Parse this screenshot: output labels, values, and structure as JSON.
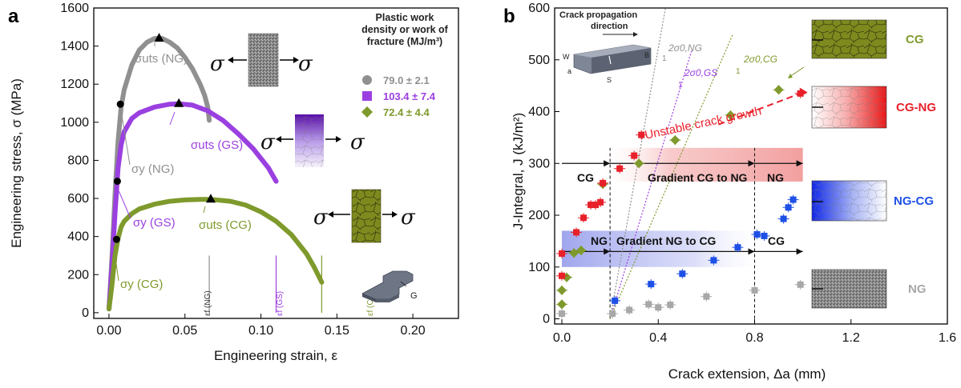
{
  "colors": {
    "ng": "#909090",
    "gs": "#9a3fe0",
    "cg": "#7f9a2c",
    "red": "#e8202a",
    "blue": "#1e50e6",
    "gray_pts": "#a8a8a8"
  },
  "panel_a": {
    "letter": "a",
    "legend": {
      "title_lines": [
        "Plastic work",
        "density or work of",
        "fracture (MJ/m³)"
      ],
      "entries": [
        {
          "marker": "circle",
          "value": "79.0 ± 2.1",
          "color_key": "ng"
        },
        {
          "marker": "square",
          "value": "103.4 ± 7.4",
          "color_key": "gs"
        },
        {
          "marker": "diamond",
          "value": "72.4 ± 4.4",
          "color_key": "cg"
        }
      ]
    },
    "annotations": {
      "uts_ng": "σuts (NG)",
      "uts_gs": "σuts (GS)",
      "uts_cg": "σuts (CG)",
      "y_ng": "σy (NG)",
      "y_gs": "σy (GS)",
      "y_cg": "σy (CG)",
      "ef_ng": "εf (NG)",
      "ef_gs": "εf (GS)",
      "ef_cg": "εf (CG)",
      "sigma": "σ",
      "specimen_g": "G"
    }
  },
  "panel_b": {
    "letter": "b",
    "crack_label_lines": [
      "Crack propagation",
      "direction"
    ],
    "slope_labels": {
      "ng": "2σ0,NG",
      "gs": "2σ0,GS",
      "cg": "2σ0,CG",
      "one": "1"
    },
    "specimen_labels": {
      "w": "W",
      "a": "a",
      "s": "S",
      "b": "B"
    },
    "unstable": "Unstable crack growth",
    "region_upper": {
      "left": "CG",
      "mid": "Gradient CG to NG",
      "right": "NG"
    },
    "region_lower": {
      "left": "NG",
      "mid": "Gradient NG to CG",
      "right": "CG"
    },
    "samples": [
      {
        "label": "CG",
        "color_key": "cg"
      },
      {
        "label": "CG-NG",
        "color_key": "red"
      },
      {
        "label": "NG-CG",
        "color_key": "blue"
      },
      {
        "label": "NG",
        "color_key": "gray_pts"
      }
    ]
  },
  "chart_data": [
    {
      "type": "line",
      "xlabel": "Engineering strain, ε",
      "ylabel": "Engineering stress, σ (MPa)",
      "xlim": [
        -0.01,
        0.23
      ],
      "ylim": [
        -30,
        1600
      ],
      "xticks": [
        "0.00",
        "0.05",
        "0.10",
        "0.15",
        "0.20"
      ],
      "xtick_values": [
        0,
        0.05,
        0.1,
        0.15,
        0.2
      ],
      "yticks": [
        "0",
        "200",
        "400",
        "600",
        "800",
        "1000",
        "1200",
        "1400",
        "1600"
      ],
      "ytick_values": [
        0,
        200,
        400,
        600,
        800,
        1000,
        1200,
        1400,
        1600
      ],
      "series": [
        {
          "name": "NG",
          "color_key": "ng",
          "x": [
            0.0,
            0.002,
            0.004,
            0.006,
            0.008,
            0.01,
            0.015,
            0.02,
            0.025,
            0.03,
            0.035,
            0.04,
            0.045,
            0.05,
            0.055,
            0.06,
            0.063,
            0.065,
            0.066
          ],
          "y": [
            20,
            300,
            620,
            900,
            1080,
            1170,
            1300,
            1380,
            1420,
            1440,
            1440,
            1420,
            1390,
            1340,
            1280,
            1200,
            1140,
            1080,
            1010
          ],
          "uts": [
            0.033,
            1440
          ],
          "yield": [
            0.0075,
            1095
          ]
        },
        {
          "name": "GS",
          "color_key": "gs",
          "x": [
            0.0,
            0.002,
            0.004,
            0.006,
            0.008,
            0.01,
            0.015,
            0.02,
            0.03,
            0.04,
            0.046,
            0.055,
            0.065,
            0.075,
            0.085,
            0.095,
            0.105,
            0.11
          ],
          "y": [
            20,
            250,
            520,
            760,
            880,
            950,
            1020,
            1050,
            1080,
            1095,
            1097,
            1090,
            1060,
            1010,
            940,
            860,
            760,
            690
          ],
          "uts": [
            0.046,
            1097
          ],
          "yield": [
            0.0055,
            690
          ]
        },
        {
          "name": "CG",
          "color_key": "cg",
          "x": [
            0.0,
            0.002,
            0.004,
            0.006,
            0.008,
            0.01,
            0.015,
            0.02,
            0.03,
            0.04,
            0.05,
            0.06,
            0.067,
            0.08,
            0.09,
            0.1,
            0.11,
            0.12,
            0.13,
            0.135,
            0.14
          ],
          "y": [
            20,
            150,
            300,
            390,
            450,
            480,
            520,
            545,
            570,
            585,
            592,
            595,
            595,
            585,
            565,
            530,
            480,
            410,
            310,
            240,
            160
          ],
          "uts": [
            0.067,
            595
          ],
          "yield": [
            0.005,
            385
          ]
        }
      ],
      "fracture_strains": {
        "ng": 0.066,
        "gs": 0.11,
        "cg": 0.14
      }
    },
    {
      "type": "scatter",
      "xlabel": "Crack extension, Δa (mm)",
      "ylabel": "J-Integral, J (kJ/m²)",
      "xlim": [
        -0.03,
        1.6
      ],
      "ylim": [
        -10,
        600
      ],
      "xticks": [
        "0.0",
        "0.4",
        "0.8",
        "1.2",
        "1.6"
      ],
      "xtick_values": [
        0,
        0.4,
        0.8,
        1.2,
        1.6
      ],
      "yticks": [
        "0",
        "100",
        "200",
        "300",
        "400",
        "500",
        "600"
      ],
      "ytick_values": [
        0,
        100,
        200,
        300,
        400,
        500,
        600
      ],
      "series": [
        {
          "name": "CG",
          "color_key": "cg",
          "marker": "diamond",
          "points": [
            [
              0.0,
              28
            ],
            [
              0.0,
              55
            ],
            [
              0.02,
              80
            ],
            [
              0.05,
              127
            ],
            [
              0.08,
              132
            ],
            [
              0.17,
              260
            ],
            [
              0.32,
              300
            ],
            [
              0.47,
              345
            ],
            [
              0.7,
              393
            ],
            [
              0.9,
              442
            ]
          ]
        },
        {
          "name": "CG-NG",
          "color_key": "red",
          "marker": "square",
          "points": [
            [
              0.0,
              83
            ],
            [
              0.0,
              126
            ],
            [
              0.06,
              167
            ],
            [
              0.09,
              195
            ],
            [
              0.12,
              220
            ],
            [
              0.14,
              220
            ],
            [
              0.16,
              225
            ],
            [
              0.17,
              262
            ],
            [
              0.24,
              290
            ],
            [
              0.3,
              315
            ],
            [
              0.33,
              355
            ],
            [
              0.99,
              435
            ]
          ]
        },
        {
          "name": "NG-CG",
          "color_key": "blue",
          "marker": "square",
          "points": [
            [
              0.22,
              35
            ],
            [
              0.37,
              67
            ],
            [
              0.5,
              87
            ],
            [
              0.63,
              113
            ],
            [
              0.73,
              138
            ],
            [
              0.81,
              163
            ],
            [
              0.84,
              160
            ],
            [
              0.92,
              193
            ],
            [
              0.94,
              215
            ],
            [
              0.96,
              230
            ]
          ]
        },
        {
          "name": "NG",
          "color_key": "gray_pts",
          "marker": "square",
          "points": [
            [
              0.0,
              10
            ],
            [
              0.21,
              10
            ],
            [
              0.28,
              17
            ],
            [
              0.36,
              28
            ],
            [
              0.4,
              22
            ],
            [
              0.45,
              27
            ],
            [
              0.6,
              43
            ],
            [
              0.8,
              55
            ],
            [
              0.99,
              66
            ]
          ]
        }
      ],
      "unstable_line": [
        [
          0.65,
          375
        ],
        [
          1.0,
          437
        ]
      ],
      "blunting_lines_x_at_top": {
        "ng": 0.43,
        "gs": 0.54,
        "cg": 0.71
      },
      "region_boundaries_x": [
        0.2,
        0.8
      ],
      "region_upper_band": [
        265,
        330
      ],
      "region_lower_band": [
        100,
        170
      ]
    }
  ]
}
